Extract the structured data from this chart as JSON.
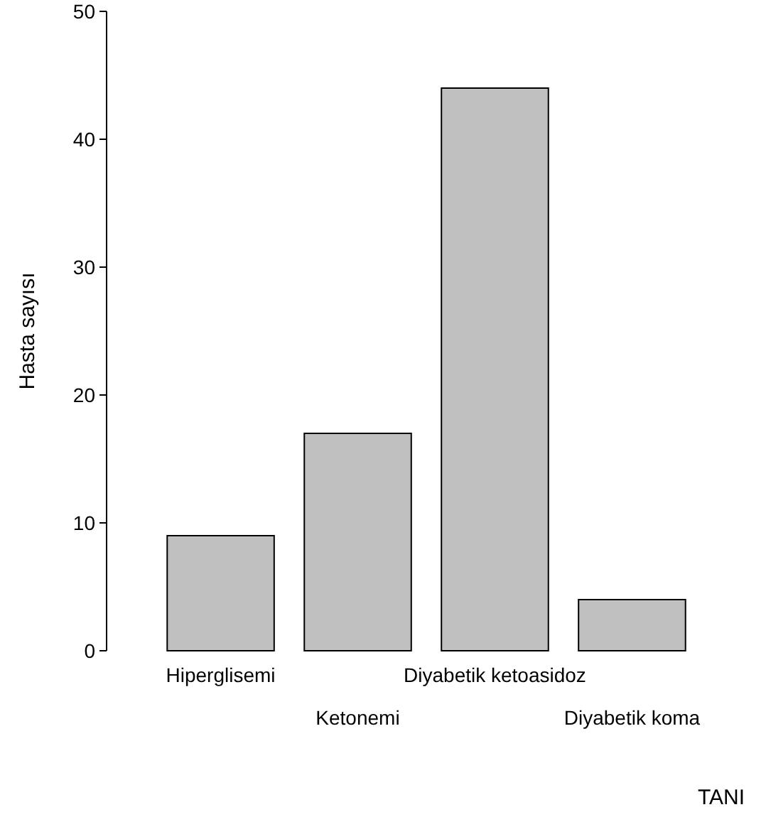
{
  "chart_data": {
    "type": "bar",
    "xlabel": "TANI",
    "ylabel": "Hasta sayısı",
    "categories": [
      "Hiperglisemi",
      "Ketonemi",
      "Diyabetik ketoasidoz",
      "Diyabetik koma"
    ],
    "values": [
      9,
      17,
      44,
      4
    ],
    "color": "#c0c0c0",
    "ylim": [
      0,
      50
    ],
    "yticks": [
      0,
      10,
      20,
      30,
      40,
      50
    ],
    "grid": false
  }
}
